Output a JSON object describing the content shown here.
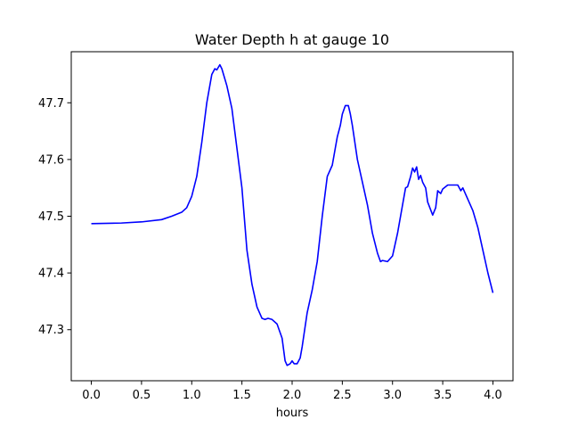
{
  "chart_data": {
    "type": "line",
    "title": "Water Depth h at gauge 10",
    "xlabel": "hours",
    "ylabel": "",
    "xlim": [
      -0.2,
      4.2
    ],
    "ylim": [
      47.21,
      47.79
    ],
    "xticks": [
      0.0,
      0.5,
      1.0,
      1.5,
      2.0,
      2.5,
      3.0,
      3.5,
      4.0
    ],
    "xtick_labels": [
      "0.0",
      "0.5",
      "1.0",
      "1.5",
      "2.0",
      "2.5",
      "3.0",
      "3.5",
      "4.0"
    ],
    "yticks": [
      47.3,
      47.4,
      47.5,
      47.6,
      47.7
    ],
    "ytick_labels": [
      "47.3",
      "47.4",
      "47.5",
      "47.6",
      "47.7"
    ],
    "grid": false,
    "series": [
      {
        "color": "#0000ff",
        "x": [
          0.0,
          0.3,
          0.5,
          0.7,
          0.8,
          0.9,
          0.95,
          1.0,
          1.05,
          1.1,
          1.15,
          1.2,
          1.23,
          1.25,
          1.28,
          1.3,
          1.35,
          1.4,
          1.45,
          1.5,
          1.55,
          1.6,
          1.65,
          1.7,
          1.73,
          1.76,
          1.8,
          1.85,
          1.9,
          1.93,
          1.95,
          1.98,
          2.0,
          2.02,
          2.05,
          2.08,
          2.1,
          2.15,
          2.2,
          2.25,
          2.3,
          2.35,
          2.4,
          2.43,
          2.45,
          2.48,
          2.5,
          2.53,
          2.56,
          2.58,
          2.6,
          2.65,
          2.7,
          2.75,
          2.8,
          2.85,
          2.88,
          2.9,
          2.95,
          3.0,
          3.05,
          3.1,
          3.13,
          3.15,
          3.18,
          3.2,
          3.22,
          3.24,
          3.26,
          3.28,
          3.3,
          3.33,
          3.35,
          3.4,
          3.43,
          3.45,
          3.48,
          3.5,
          3.55,
          3.6,
          3.65,
          3.68,
          3.7,
          3.75,
          3.8,
          3.85,
          3.9,
          3.95,
          4.0
        ],
        "y": [
          47.487,
          47.488,
          47.49,
          47.494,
          47.5,
          47.507,
          47.515,
          47.535,
          47.57,
          47.63,
          47.7,
          47.75,
          47.76,
          47.758,
          47.767,
          47.76,
          47.73,
          47.69,
          47.62,
          47.55,
          47.44,
          47.38,
          47.34,
          47.32,
          47.318,
          47.32,
          47.318,
          47.31,
          47.285,
          47.245,
          47.237,
          47.24,
          47.245,
          47.24,
          47.24,
          47.25,
          47.27,
          47.33,
          47.37,
          47.42,
          47.5,
          47.57,
          47.59,
          47.62,
          47.64,
          47.66,
          47.68,
          47.695,
          47.695,
          47.68,
          47.66,
          47.6,
          47.56,
          47.52,
          47.47,
          47.435,
          47.42,
          47.422,
          47.42,
          47.43,
          47.47,
          47.52,
          47.55,
          47.552,
          47.57,
          47.585,
          47.578,
          47.587,
          47.565,
          47.572,
          47.56,
          47.55,
          47.525,
          47.502,
          47.515,
          47.545,
          47.54,
          47.548,
          47.555,
          47.555,
          47.555,
          47.545,
          47.55,
          47.53,
          47.51,
          47.48,
          47.44,
          47.4,
          47.365
        ]
      }
    ]
  }
}
